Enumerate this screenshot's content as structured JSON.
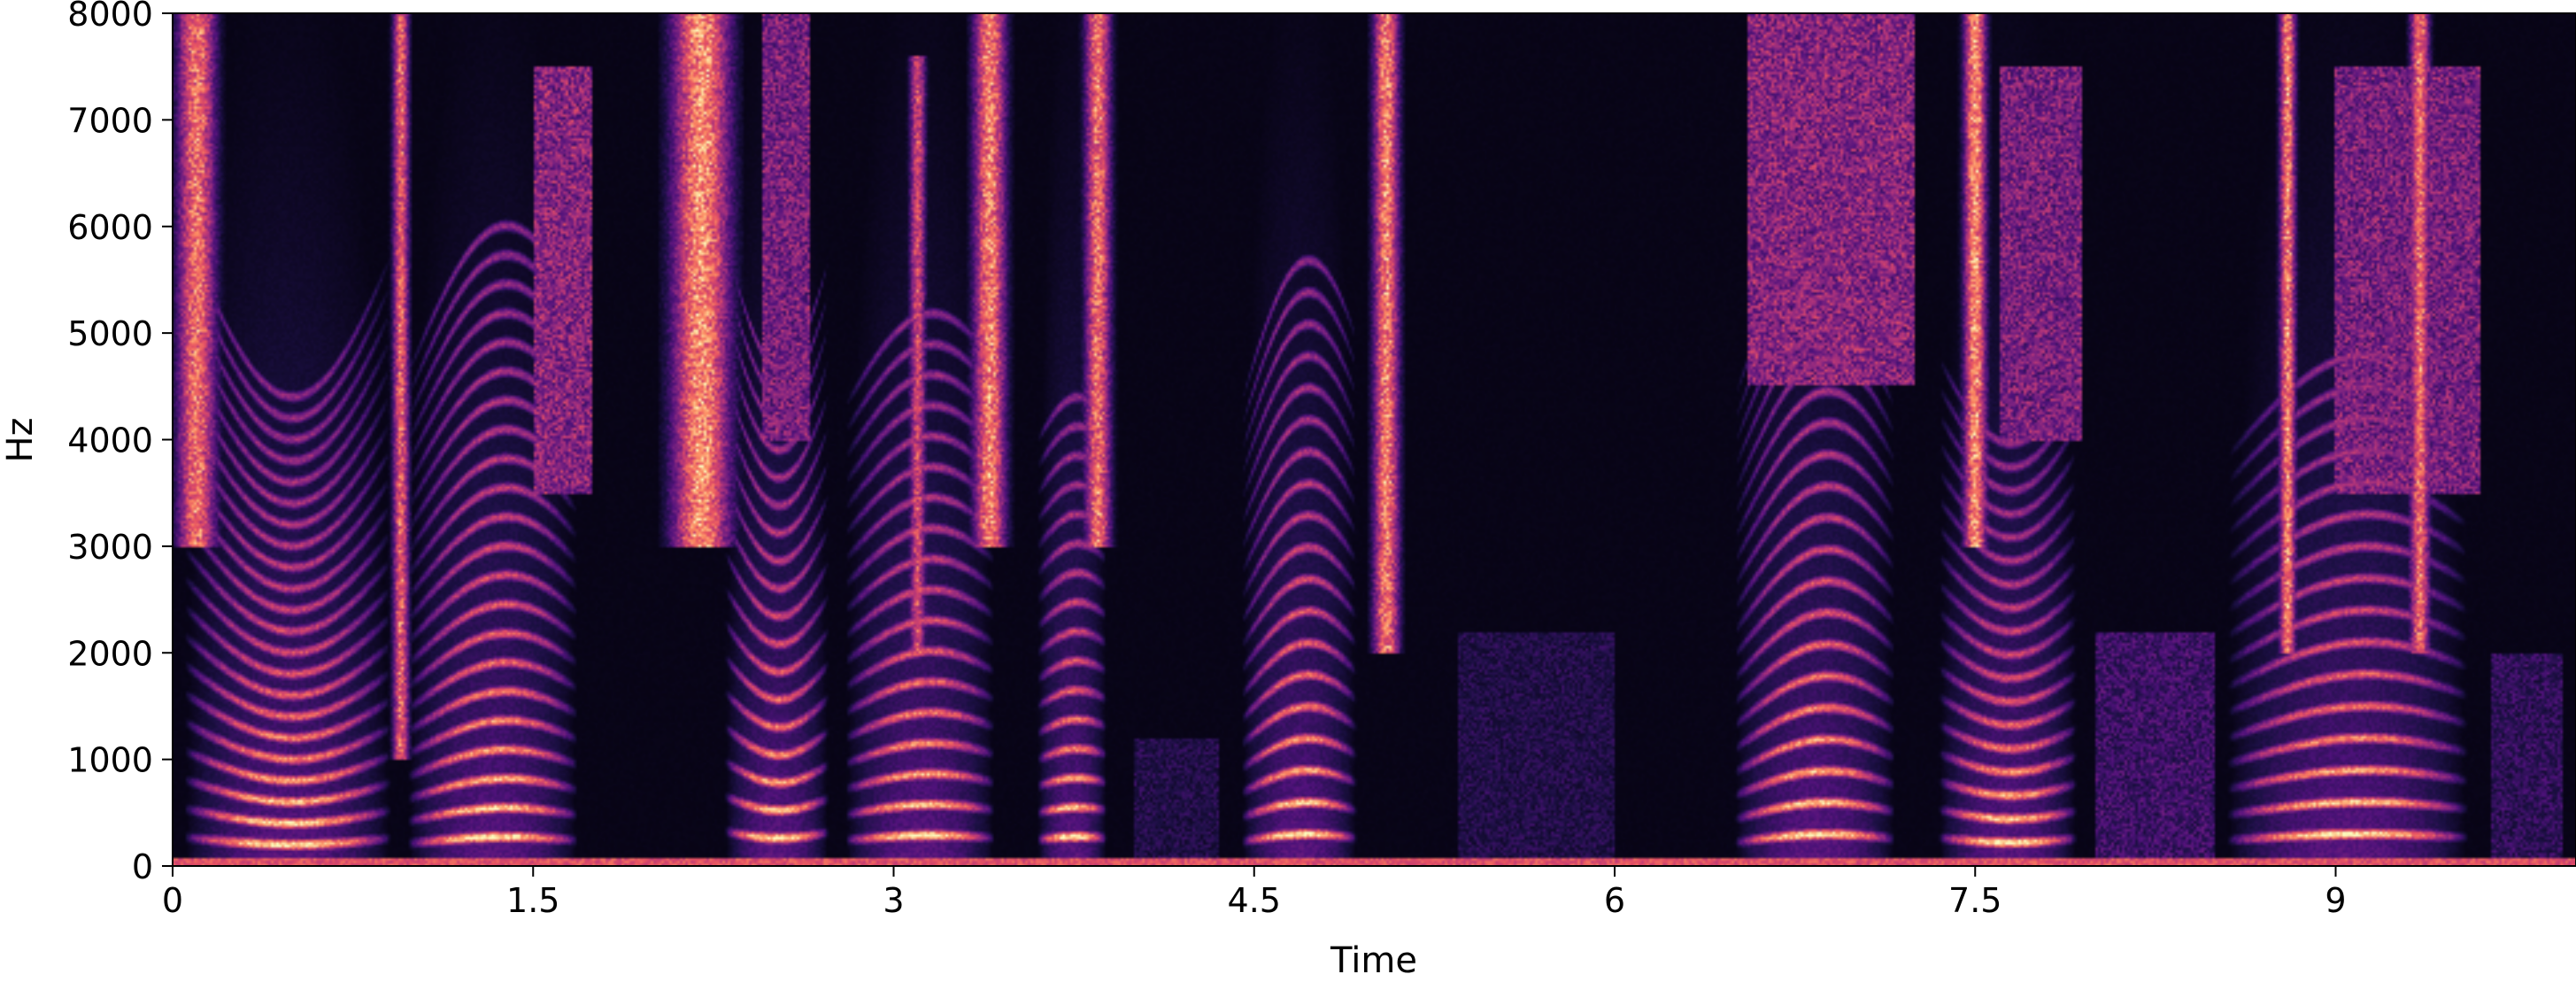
{
  "chart_data": {
    "type": "heatmap",
    "title": "",
    "xlabel": "Time",
    "ylabel": "Hz",
    "xlim": [
      0,
      10.0
    ],
    "ylim": [
      0,
      8000
    ],
    "x_ticks": [
      0,
      1.5,
      3,
      4.5,
      6,
      7.5,
      9
    ],
    "x_tick_labels": [
      "0",
      "1.5",
      "3",
      "4.5",
      "6",
      "7.5",
      "9"
    ],
    "y_ticks": [
      0,
      1000,
      2000,
      3000,
      4000,
      5000,
      6000,
      7000,
      8000
    ],
    "y_tick_labels": [
      "0",
      "1000",
      "2000",
      "3000",
      "4000",
      "5000",
      "6000",
      "7000",
      "8000"
    ],
    "colormap": "magma",
    "grid": false,
    "voiced_segments": [
      {
        "start": 0.05,
        "end": 0.95,
        "f0": 200,
        "nharm": 22,
        "sweep": 0.35,
        "dir": -1
      },
      {
        "start": 0.98,
        "end": 1.72,
        "f0": 210,
        "nharm": 22,
        "sweep": 0.3,
        "dir": 1
      },
      {
        "start": 2.3,
        "end": 2.75,
        "f0": 260,
        "nharm": 18,
        "sweep": 0.25,
        "dir": -1
      },
      {
        "start": 2.8,
        "end": 3.45,
        "f0": 240,
        "nharm": 18,
        "sweep": 0.2,
        "dir": 1
      },
      {
        "start": 3.6,
        "end": 3.9,
        "f0": 250,
        "nharm": 16,
        "sweep": 0.1,
        "dir": 1
      },
      {
        "start": 4.45,
        "end": 4.95,
        "f0": 230,
        "nharm": 19,
        "sweep": 0.3,
        "dir": 1
      },
      {
        "start": 6.5,
        "end": 7.2,
        "f0": 220,
        "nharm": 20,
        "sweep": 0.35,
        "dir": 1
      },
      {
        "start": 7.35,
        "end": 7.95,
        "f0": 220,
        "nharm": 18,
        "sweep": 0.2,
        "dir": -1
      },
      {
        "start": 8.55,
        "end": 9.6,
        "f0": 240,
        "nharm": 16,
        "sweep": 0.25,
        "dir": 1
      }
    ],
    "fricative_bursts": [
      {
        "t": 0.1,
        "w": 0.12,
        "lo": 3000,
        "hi": 8000,
        "e": 0.85
      },
      {
        "t": 0.95,
        "w": 0.05,
        "lo": 1000,
        "hi": 8000,
        "e": 0.8
      },
      {
        "t": 2.2,
        "w": 0.18,
        "lo": 3000,
        "hi": 8000,
        "e": 0.95
      },
      {
        "t": 3.1,
        "w": 0.05,
        "lo": 2000,
        "hi": 7600,
        "e": 0.7
      },
      {
        "t": 3.4,
        "w": 0.1,
        "lo": 3000,
        "hi": 8000,
        "e": 0.9
      },
      {
        "t": 3.85,
        "w": 0.08,
        "lo": 3000,
        "hi": 8000,
        "e": 0.85
      },
      {
        "t": 5.05,
        "w": 0.08,
        "lo": 2000,
        "hi": 8000,
        "e": 0.9
      },
      {
        "t": 7.5,
        "w": 0.07,
        "lo": 3000,
        "hi": 8000,
        "e": 0.95
      },
      {
        "t": 8.8,
        "w": 0.05,
        "lo": 2000,
        "hi": 8000,
        "e": 0.9
      },
      {
        "t": 9.35,
        "w": 0.06,
        "lo": 2000,
        "hi": 8000,
        "e": 0.85
      }
    ],
    "noise_regions": [
      {
        "start": 1.5,
        "end": 1.75,
        "lo": 3500,
        "hi": 7500,
        "e": 0.55
      },
      {
        "start": 2.45,
        "end": 2.65,
        "lo": 4000,
        "hi": 8000,
        "e": 0.5
      },
      {
        "start": 6.55,
        "end": 7.25,
        "lo": 4500,
        "hi": 8000,
        "e": 0.55
      },
      {
        "start": 7.6,
        "end": 7.95,
        "lo": 4000,
        "hi": 7500,
        "e": 0.5
      },
      {
        "start": 9.0,
        "end": 9.6,
        "lo": 3500,
        "hi": 7500,
        "e": 0.5
      },
      {
        "start": 5.35,
        "end": 6.0,
        "lo": 0,
        "hi": 2200,
        "e": 0.2
      },
      {
        "start": 4.0,
        "end": 4.35,
        "lo": 0,
        "hi": 1200,
        "e": 0.2
      },
      {
        "start": 8.0,
        "end": 8.5,
        "lo": 0,
        "hi": 2200,
        "e": 0.3
      },
      {
        "start": 9.65,
        "end": 9.95,
        "lo": 0,
        "hi": 2000,
        "e": 0.25
      }
    ]
  }
}
